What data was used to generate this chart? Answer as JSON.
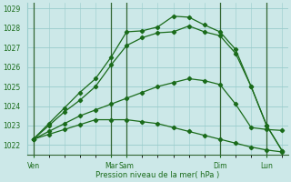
{
  "background_color": "#cce8e8",
  "grid_color": "#99cccc",
  "line_color": "#1a6b1a",
  "ylabel": "Pression niveau de la mer( hPa )",
  "ylim": [
    1021.5,
    1029.3
  ],
  "yticks": [
    1022,
    1023,
    1024,
    1025,
    1026,
    1027,
    1028,
    1029
  ],
  "series": [
    {
      "x": [
        0,
        0.5,
        1.0,
        1.5,
        2.0,
        2.5,
        3.0,
        3.5,
        4.0,
        4.5,
        5.0,
        5.5,
        6.0,
        6.5,
        7.0,
        7.5,
        8.0
      ],
      "y": [
        1022.3,
        1022.55,
        1022.8,
        1023.05,
        1023.3,
        1023.3,
        1023.3,
        1023.2,
        1023.1,
        1022.9,
        1022.7,
        1022.5,
        1022.3,
        1022.1,
        1021.9,
        1021.75,
        1021.65
      ]
    },
    {
      "x": [
        0,
        0.5,
        1.0,
        1.5,
        2.0,
        2.5,
        3.0,
        3.5,
        4.0,
        4.5,
        5.0,
        5.5,
        6.0,
        6.5,
        7.0,
        7.5,
        8.0
      ],
      "y": [
        1022.3,
        1022.7,
        1023.1,
        1023.5,
        1023.8,
        1024.1,
        1024.4,
        1024.7,
        1025.0,
        1025.2,
        1025.4,
        1025.3,
        1025.1,
        1024.1,
        1022.9,
        1022.8,
        1022.75
      ]
    },
    {
      "x": [
        0,
        0.5,
        1.0,
        1.5,
        2.0,
        2.5,
        3.0,
        3.5,
        4.0,
        4.5,
        5.0,
        5.5,
        6.0,
        6.5,
        7.0,
        7.5,
        8.0
      ],
      "y": [
        1022.3,
        1023.0,
        1023.7,
        1024.3,
        1025.0,
        1026.1,
        1027.1,
        1027.5,
        1027.75,
        1027.8,
        1028.1,
        1027.8,
        1027.6,
        1026.7,
        1025.0,
        1023.0,
        1021.7
      ]
    },
    {
      "x": [
        0,
        0.5,
        1.0,
        1.5,
        2.0,
        2.5,
        3.0,
        3.5,
        4.0,
        4.5,
        5.0,
        5.5,
        6.0,
        6.5,
        7.0,
        7.5,
        8.0
      ],
      "y": [
        1022.3,
        1023.1,
        1023.9,
        1024.7,
        1025.4,
        1026.5,
        1027.8,
        1027.85,
        1028.05,
        1028.6,
        1028.55,
        1028.15,
        1027.8,
        1026.9,
        1025.0,
        1023.0,
        1021.7
      ]
    }
  ],
  "vline_x": [
    0,
    2.5,
    3.0,
    6.0,
    7.5
  ],
  "xtick_positions": [
    0,
    2.5,
    3.0,
    6.0,
    7.5
  ],
  "xtick_labels": [
    "Ven",
    "Mar",
    "Sam",
    "Dim",
    "Lun"
  ],
  "xlim": [
    -0.2,
    8.2
  ]
}
